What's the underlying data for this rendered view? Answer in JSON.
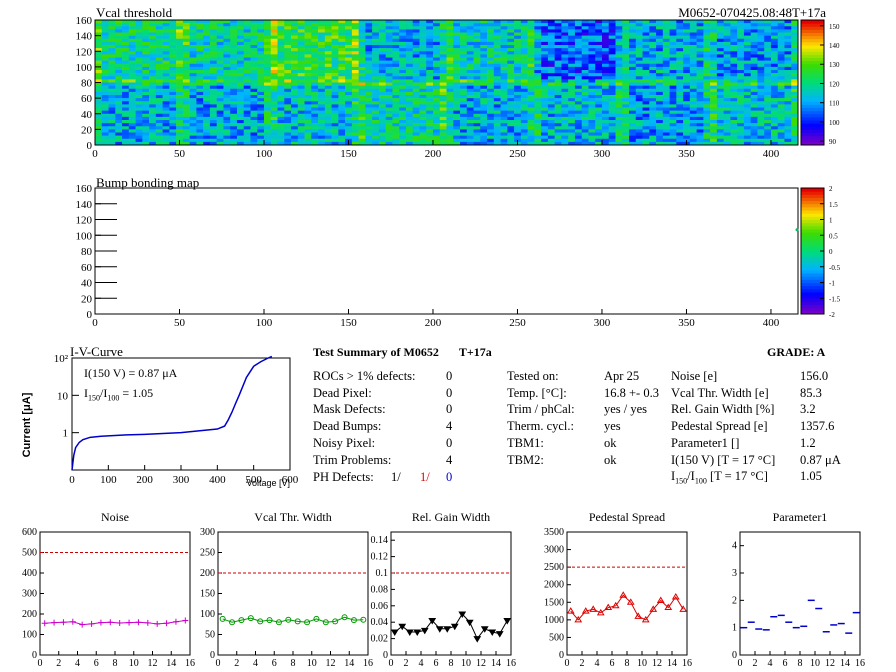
{
  "header": {
    "title": "M0652-070425.08:48T+17a"
  },
  "maps": [
    {
      "title": "Vcal threshold",
      "x_ticks": [
        "0",
        "50",
        "100",
        "150",
        "200",
        "250",
        "300",
        "350",
        "400"
      ],
      "y_ticks": [
        "0",
        "20",
        "40",
        "60",
        "80",
        "100",
        "120",
        "140",
        "160"
      ],
      "palette_ticks": [
        "90",
        "100",
        "110",
        "120",
        "130",
        "140",
        "150"
      ],
      "xlim": [
        0,
        416
      ],
      "ylim": [
        0,
        160
      ],
      "zlim": [
        88,
        153
      ]
    },
    {
      "title": "Bump bonding map",
      "x_ticks": [
        "0",
        "50",
        "100",
        "150",
        "200",
        "250",
        "300",
        "350",
        "400"
      ],
      "y_ticks": [
        "0",
        "20",
        "40",
        "60",
        "80",
        "100",
        "120",
        "140",
        "160"
      ],
      "palette_ticks": [
        "-2",
        "-1.5",
        "-1",
        "-0.5",
        "0",
        "0.5",
        "1",
        "1.5",
        "2"
      ],
      "xlim": [
        0,
        416
      ],
      "ylim": [
        0,
        160
      ],
      "zlim": [
        -2,
        2
      ]
    }
  ],
  "iv": {
    "title": "I-V-Curve",
    "ylabel": "Current [μA]",
    "xlabel": "Voltage [V]",
    "x_ticks": [
      "0",
      "100",
      "200",
      "300",
      "400",
      "500",
      "600"
    ],
    "y_ticks": [
      "1",
      "10",
      "10²"
    ],
    "note1": "I(150 V) = 0.87 μA",
    "note2_pre": "I",
    "note2_sub1": "150",
    "note2_mid": "/I",
    "note2_sub2": "100",
    "note2_post": " =  1.05",
    "chart_data": {
      "type": "line",
      "x": [
        0,
        5,
        10,
        20,
        30,
        50,
        80,
        150,
        200,
        300,
        400,
        420,
        430,
        440,
        450,
        460,
        480,
        500,
        520,
        540,
        550
      ],
      "y": [
        0.1,
        0.25,
        0.4,
        0.55,
        0.65,
        0.75,
        0.8,
        0.87,
        0.9,
        1.0,
        1.25,
        1.5,
        2.2,
        3.5,
        6,
        10,
        30,
        60,
        80,
        100,
        110
      ],
      "xlim": [
        0,
        600
      ],
      "ylim_log": [
        0.1,
        100
      ],
      "log_y": true
    }
  },
  "summary": {
    "title": "Test Summary of M0652",
    "tag": "T+17a",
    "grade_label": "GRADE:  A",
    "col1": [
      {
        "label": "ROCs > 1% defects:",
        "value": "0"
      },
      {
        "label": "Dead Pixel:",
        "value": "0"
      },
      {
        "label": "Mask Defects:",
        "value": "0"
      },
      {
        "label": "Dead Bumps:",
        "value": "4"
      },
      {
        "label": "Noisy Pixel:",
        "value": "0"
      },
      {
        "label": "Trim Problems:",
        "value": "4"
      }
    ],
    "ph_label": "PH Defects:",
    "ph_values": [
      {
        "v": "1/",
        "color": "#000000"
      },
      {
        "v": "1/",
        "color": "#e00000"
      },
      {
        "v": "0",
        "color": "#0000cc"
      }
    ],
    "col2": [
      {
        "label": "Tested on:",
        "value": "Apr 25"
      },
      {
        "label": "Temp. [°C]:",
        "value": "16.8 +- 0.3"
      },
      {
        "label": "Trim / phCal:",
        "value": "yes / yes"
      },
      {
        "label": "Therm. cycl.:",
        "value": "yes"
      },
      {
        "label": "TBM1:",
        "value": "ok"
      },
      {
        "label": "TBM2:",
        "value": "ok"
      }
    ],
    "col3": [
      {
        "label": "Noise [e]",
        "value": "156.0"
      },
      {
        "label": "Vcal Thr. Width [e]",
        "value": "85.3"
      },
      {
        "label": "Rel. Gain Width [%]",
        "value": "3.2"
      },
      {
        "label": "Pedestal Spread [e]",
        "value": "1357.6"
      },
      {
        "label": "Parameter1 []",
        "value": "1.2"
      },
      {
        "label": "I(150 V) [T = 17 °C]",
        "value": "0.87 μA"
      }
    ],
    "ratio_pre": "I",
    "ratio_sub1": "150",
    "ratio_mid": "/I",
    "ratio_sub2": "100",
    "ratio_post": "  [T = 17 °C]",
    "ratio_value": "1.05"
  },
  "chart_data": [
    {
      "type": "scatter",
      "title": "Noise",
      "color": "#cc00cc",
      "marker": "plus",
      "x": [
        0,
        1,
        2,
        3,
        4,
        5,
        6,
        7,
        8,
        9,
        10,
        11,
        12,
        13,
        14,
        15
      ],
      "values": [
        155,
        158,
        160,
        162,
        148,
        152,
        158,
        160,
        156,
        158,
        160,
        157,
        152,
        155,
        162,
        168
      ],
      "ylim": [
        0,
        600
      ],
      "y_ticks": [
        "0",
        "100",
        "200",
        "300",
        "400",
        "500",
        "600"
      ],
      "threshold": 500,
      "x_ticks": [
        "0",
        "2",
        "4",
        "6",
        "8",
        "10",
        "12",
        "14",
        "16"
      ]
    },
    {
      "type": "line",
      "title": "Vcal Thr. Width",
      "color": "#009900",
      "marker": "circle",
      "x": [
        0,
        1,
        2,
        3,
        4,
        5,
        6,
        7,
        8,
        9,
        10,
        11,
        12,
        13,
        14,
        15
      ],
      "values": [
        88,
        80,
        85,
        90,
        82,
        85,
        80,
        86,
        82,
        80,
        88,
        80,
        82,
        92,
        85,
        86
      ],
      "ylim": [
        0,
        300
      ],
      "y_ticks": [
        "0",
        "50",
        "100",
        "150",
        "200",
        "250",
        "300"
      ],
      "threshold": 200,
      "x_ticks": [
        "0",
        "2",
        "4",
        "6",
        "8",
        "10",
        "12",
        "14",
        "16"
      ]
    },
    {
      "type": "line",
      "title": "Rel. Gain Width",
      "color": "#000000",
      "marker": "triangle-down",
      "x": [
        0,
        1,
        2,
        3,
        4,
        5,
        6,
        7,
        8,
        9,
        10,
        11,
        12,
        13,
        14,
        15
      ],
      "values": [
        0.028,
        0.035,
        0.028,
        0.028,
        0.03,
        0.042,
        0.032,
        0.032,
        0.035,
        0.05,
        0.04,
        0.02,
        0.032,
        0.028,
        0.026,
        0.042
      ],
      "ylim": [
        0,
        0.15
      ],
      "y_ticks": [
        "0",
        "0.02",
        "0.04",
        "0.06",
        "0.08",
        "0.1",
        "0.12",
        "0.14"
      ],
      "threshold": 0.1,
      "x_ticks": [
        "0",
        "2",
        "4",
        "6",
        "8",
        "10",
        "12",
        "14",
        "16"
      ]
    },
    {
      "type": "line",
      "title": "Pedestal Spread",
      "color": "#dd0000",
      "marker": "triangle-up",
      "x": [
        0,
        1,
        2,
        3,
        4,
        5,
        6,
        7,
        8,
        9,
        10,
        11,
        12,
        13,
        14,
        15
      ],
      "values": [
        1250,
        1000,
        1250,
        1300,
        1200,
        1350,
        1400,
        1700,
        1500,
        1100,
        1000,
        1300,
        1550,
        1350,
        1650,
        1300
      ],
      "ylim": [
        0,
        3500
      ],
      "y_ticks": [
        "0",
        "500",
        "1000",
        "1500",
        "2000",
        "2500",
        "3000",
        "3500"
      ],
      "threshold": 2500,
      "x_ticks": [
        "0",
        "2",
        "4",
        "6",
        "8",
        "10",
        "12",
        "14",
        "16"
      ]
    },
    {
      "type": "scatter",
      "title": "Parameter1",
      "color": "#0000cc",
      "marker": "hbar",
      "x": [
        0,
        1,
        2,
        3,
        4,
        5,
        6,
        7,
        8,
        9,
        10,
        11,
        12,
        13,
        14,
        15
      ],
      "values": [
        1.0,
        1.2,
        0.95,
        0.92,
        1.4,
        1.45,
        1.2,
        1.0,
        1.05,
        2.0,
        1.7,
        0.85,
        1.1,
        1.15,
        0.8,
        1.55
      ],
      "ylim": [
        0,
        4.5
      ],
      "y_ticks": [
        "0",
        "1",
        "2",
        "3",
        "4"
      ],
      "threshold": null,
      "x_ticks": [
        "0",
        "2",
        "4",
        "6",
        "8",
        "10",
        "12",
        "14",
        "16"
      ]
    }
  ]
}
